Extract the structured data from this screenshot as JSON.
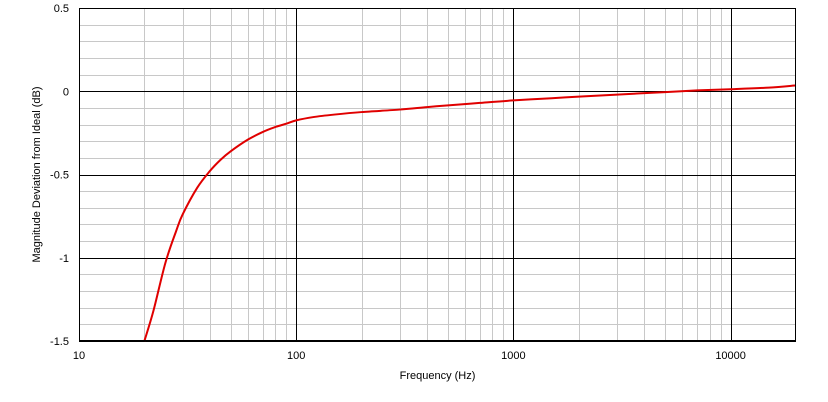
{
  "chart_data": {
    "type": "line",
    "title": "",
    "xlabel": "Frequency (Hz)",
    "ylabel": "Magnitude Deviation from Ideal (dB)",
    "xscale": "log",
    "xlim": [
      10,
      20000
    ],
    "ylim": [
      -1.5,
      0.5
    ],
    "grid": true,
    "x_ticks": [
      {
        "value": 10,
        "label": "10"
      },
      {
        "value": 100,
        "label": "100"
      },
      {
        "value": 1000,
        "label": "1000"
      },
      {
        "value": 10000,
        "label": "10000"
      }
    ],
    "y_ticks": [
      {
        "value": 0.5,
        "label": "0.5"
      },
      {
        "value": 0,
        "label": "0"
      },
      {
        "value": -0.5,
        "label": "-0.5"
      },
      {
        "value": -1,
        "label": "-1"
      },
      {
        "value": -1.5,
        "label": "-1.5"
      }
    ],
    "series": [
      {
        "color": "#e00000",
        "x": [
          20,
          22,
          25,
          28,
          30,
          35,
          40,
          45,
          50,
          60,
          70,
          80,
          90,
          100,
          120,
          150,
          200,
          300,
          400,
          500,
          700,
          1000,
          1500,
          2000,
          3000,
          5000,
          7000,
          10000,
          15000,
          20000
        ],
        "y": [
          -1.5,
          -1.32,
          -1.03,
          -0.84,
          -0.74,
          -0.58,
          -0.48,
          -0.41,
          -0.36,
          -0.29,
          -0.245,
          -0.215,
          -0.195,
          -0.175,
          -0.155,
          -0.14,
          -0.125,
          -0.11,
          -0.095,
          -0.085,
          -0.07,
          -0.055,
          -0.042,
          -0.032,
          -0.02,
          -0.005,
          0.005,
          0.012,
          0.022,
          0.035
        ]
      }
    ]
  }
}
